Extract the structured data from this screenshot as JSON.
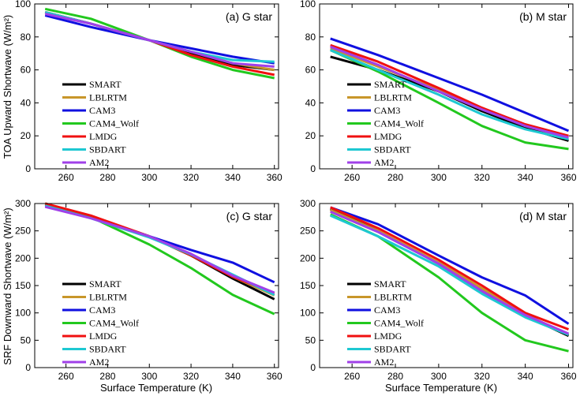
{
  "figure": {
    "xlabel": "Surface Temperature (K)",
    "ylabel_top": "TOA Upward Shortwave (W/m²)",
    "ylabel_bottom": "SRF Downward Shortwave (W/m²)"
  },
  "series_colors": {
    "SMART": "#000000",
    "LBLRTM": "#c8962a",
    "CAM3": "#1010e0",
    "CAM4_Wolf": "#22c81e",
    "LMDG": "#f01010",
    "SBDART": "#1ec8d2",
    "AM2": "#a040e8"
  },
  "chart_data": [
    {
      "type": "line",
      "panel_label": "(a) G star",
      "x": [
        250,
        272,
        300,
        320,
        340,
        360
      ],
      "xlim": [
        245,
        362
      ],
      "ylim": [
        0,
        100
      ],
      "xticks": [
        260,
        280,
        300,
        320,
        340,
        360
      ],
      "yticks": [
        0,
        20,
        40,
        60,
        80,
        100
      ],
      "legend": "bottom-left",
      "series": [
        {
          "name": "SMART",
          "values": [
            95,
            88,
            78,
            70,
            63,
            60
          ]
        },
        {
          "name": "LBLRTM",
          "values": [
            95,
            88,
            78,
            71,
            64,
            60
          ]
        },
        {
          "name": "CAM3",
          "values": [
            93,
            86,
            78,
            73,
            68,
            64
          ]
        },
        {
          "name": "CAM4_Wolf",
          "values": [
            97,
            91,
            78,
            68,
            60,
            55
          ]
        },
        {
          "name": "LMDG",
          "values": [
            95,
            88,
            78,
            69,
            62,
            57
          ]
        },
        {
          "name": "SBDART",
          "values": [
            95,
            88,
            78,
            71,
            66,
            65
          ]
        },
        {
          "name": "AM2",
          "values": [
            94,
            88,
            78,
            71,
            64,
            62
          ]
        }
      ]
    },
    {
      "type": "line",
      "panel_label": "(b) M star",
      "x": [
        250,
        272,
        300,
        320,
        340,
        360
      ],
      "xlim": [
        245,
        362
      ],
      "ylim": [
        0,
        100
      ],
      "xticks": [
        260,
        280,
        300,
        320,
        340,
        360
      ],
      "yticks": [
        0,
        20,
        40,
        60,
        80,
        100
      ],
      "legend": "bottom-left",
      "series": [
        {
          "name": "SMART",
          "values": [
            68,
            60,
            47,
            35,
            25,
            17
          ]
        },
        {
          "name": "LBLRTM",
          "values": [
            73,
            62,
            48,
            37,
            26,
            19
          ]
        },
        {
          "name": "CAM3",
          "values": [
            79,
            69,
            55,
            45,
            34,
            23
          ]
        },
        {
          "name": "CAM4_Wolf",
          "values": [
            72,
            59,
            40,
            26,
            16,
            12
          ]
        },
        {
          "name": "LMDG",
          "values": [
            75,
            65,
            49,
            37,
            27,
            20
          ]
        },
        {
          "name": "SBDART",
          "values": [
            72,
            60,
            45,
            33,
            24,
            18
          ]
        },
        {
          "name": "AM2",
          "values": [
            74,
            63,
            47,
            36,
            26,
            19
          ]
        }
      ]
    },
    {
      "type": "line",
      "panel_label": "(c) G star",
      "x": [
        250,
        272,
        300,
        320,
        340,
        360
      ],
      "xlim": [
        245,
        362
      ],
      "ylim": [
        0,
        300
      ],
      "xticks": [
        260,
        280,
        300,
        320,
        340,
        360
      ],
      "yticks": [
        0,
        50,
        100,
        150,
        200,
        250,
        300
      ],
      "legend": "bottom-left",
      "series": [
        {
          "name": "SMART",
          "values": [
            298,
            276,
            240,
            205,
            163,
            125
          ]
        },
        {
          "name": "LBLRTM",
          "values": [
            298,
            276,
            240,
            206,
            166,
            132
          ]
        },
        {
          "name": "CAM3",
          "values": [
            296,
            275,
            240,
            215,
            192,
            156
          ]
        },
        {
          "name": "CAM4_Wolf",
          "values": [
            300,
            275,
            225,
            182,
            133,
            98
          ]
        },
        {
          "name": "LMDG",
          "values": [
            300,
            278,
            240,
            205,
            166,
            136
          ]
        },
        {
          "name": "SBDART",
          "values": [
            296,
            273,
            238,
            207,
            170,
            133
          ]
        },
        {
          "name": "AM2",
          "values": [
            294,
            273,
            240,
            208,
            168,
            137
          ]
        }
      ]
    },
    {
      "type": "line",
      "panel_label": "(d) M star",
      "x": [
        250,
        272,
        300,
        320,
        340,
        360
      ],
      "xlim": [
        245,
        362
      ],
      "ylim": [
        0,
        300
      ],
      "xticks": [
        260,
        280,
        300,
        320,
        340,
        360
      ],
      "yticks": [
        0,
        50,
        100,
        150,
        200,
        250,
        300
      ],
      "legend": "bottom-left",
      "series": [
        {
          "name": "SMART",
          "values": [
            290,
            250,
            190,
            140,
            95,
            58
          ]
        },
        {
          "name": "LBLRTM",
          "values": [
            288,
            250,
            192,
            145,
            97,
            60
          ]
        },
        {
          "name": "CAM3",
          "values": [
            293,
            262,
            205,
            165,
            132,
            80
          ]
        },
        {
          "name": "CAM4_Wolf",
          "values": [
            280,
            240,
            165,
            100,
            50,
            30
          ]
        },
        {
          "name": "LMDG",
          "values": [
            293,
            255,
            197,
            150,
            100,
            70
          ]
        },
        {
          "name": "SBDART",
          "values": [
            278,
            240,
            185,
            135,
            92,
            60
          ]
        },
        {
          "name": "AM2",
          "values": [
            285,
            248,
            190,
            140,
            96,
            62
          ]
        }
      ]
    }
  ]
}
